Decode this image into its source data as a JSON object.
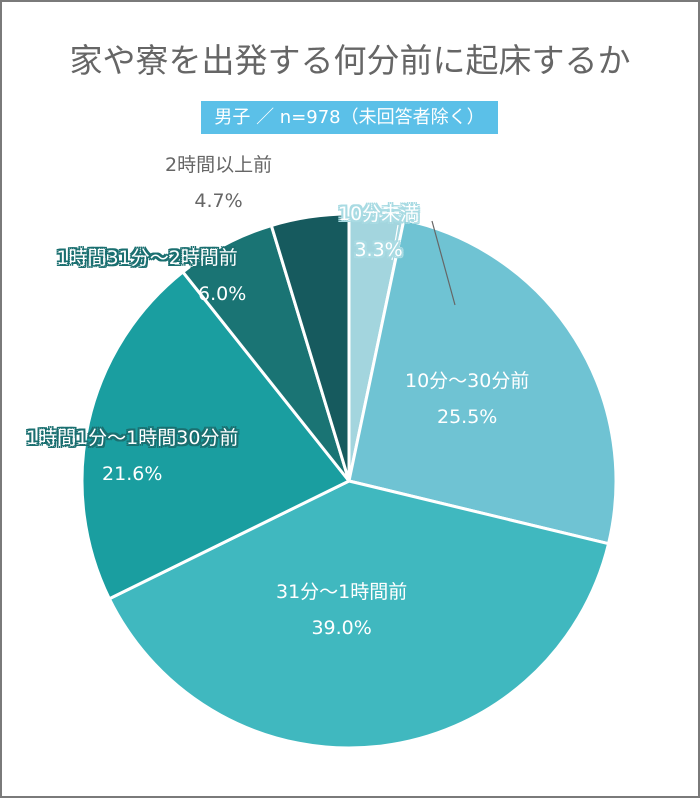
{
  "header": {
    "title": "家や寮を出発する何分前に起床するか",
    "subtitle": "男子 ／ n=978（未回答者除く）"
  },
  "colors": {
    "badge": "#5bc0e8",
    "title_text": "#666666",
    "slices": [
      "#a3d5de",
      "#6fc3d3",
      "#40b8bf",
      "#1a9ea0",
      "#1a7474",
      "#165a5e"
    ]
  },
  "labels": [
    {
      "name": "10分未満",
      "value": "3.3%"
    },
    {
      "name": "10分～30分前",
      "value": "25.5%"
    },
    {
      "name": "31分～1時間前",
      "value": "39.0%"
    },
    {
      "name": "1時間1分～1時間30分前",
      "value": "21.6%"
    },
    {
      "name": "1時間31分～2時間前",
      "value": "6.0%"
    },
    {
      "name": "2時間以上前",
      "value": "4.7%"
    }
  ],
  "chart_data": {
    "type": "pie",
    "title": "家や寮を出発する何分前に起床するか",
    "subtitle": "男子 ／ n=978（未回答者除く）",
    "categories": [
      "10分未満",
      "10分～30分前",
      "31分～1時間前",
      "1時間1分～1時間30分前",
      "1時間31分～2時間前",
      "2時間以上前"
    ],
    "values": [
      3.3,
      25.5,
      39.0,
      21.6,
      6.0,
      4.7
    ],
    "unit": "%",
    "start_angle": "12 o'clock",
    "direction": "clockwise",
    "legend": "none (direct labels)"
  }
}
